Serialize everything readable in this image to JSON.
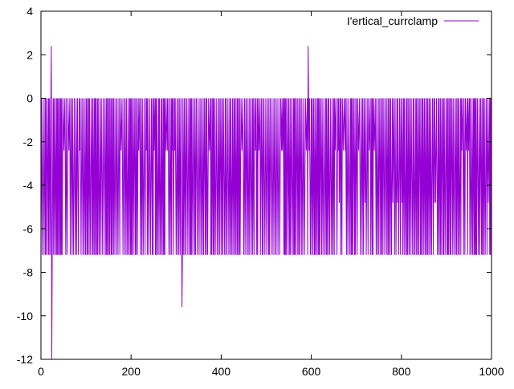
{
  "chart_data": {
    "type": "line",
    "title": "",
    "xlabel": "",
    "ylabel": "",
    "xlim": [
      0,
      1000
    ],
    "ylim": [
      -12,
      4
    ],
    "x_ticks": [
      "0",
      "200",
      "400",
      "600",
      "800",
      "1000"
    ],
    "y_ticks": [
      "4",
      "2",
      "0",
      "-2",
      "-4",
      "-6",
      "-8",
      "-10",
      "-12"
    ],
    "grid": false,
    "legend_position": "top-right",
    "series": [
      {
        "name": "I'ertical_currclamp",
        "color": "#9400d3",
        "description": "dense square-wave oscillation between 0 and -7.2 with occasional intermediate levels",
        "high_level": 0,
        "low_level": -7.2,
        "intermediate_levels": [
          -2.4,
          -4.8
        ],
        "spikes": [
          {
            "x": 23,
            "y": 2.4
          },
          {
            "x": 24,
            "y": -12
          },
          {
            "x": 313,
            "y": -9.6
          },
          {
            "x": 593,
            "y": 2.4
          }
        ],
        "end": {
          "x": 1000,
          "y": -4.8
        }
      }
    ]
  }
}
